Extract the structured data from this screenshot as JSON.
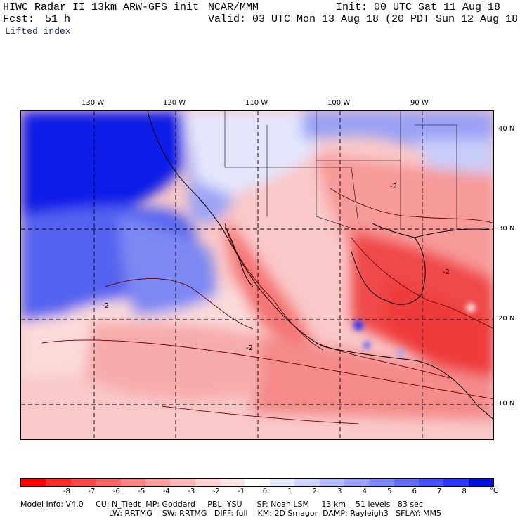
{
  "header": {
    "line1_left": "HIWC Radar II 13km ARW-GFS init",
    "line1_mid": "NCAR/MMM",
    "line1_right": "Init: 00 UTC Sat 11 Aug 18",
    "fcst_label": "Fcst:",
    "fcst_value": "51 h",
    "valid": "Valid: 03 UTC Mon 13 Aug 18 (20 PDT Sun 12 Aug 18)",
    "field": "Lifted index"
  },
  "map": {
    "lon_labels": [
      "130 W",
      "120 W",
      "110 W",
      "100 W",
      "90 W"
    ],
    "lat_labels": [
      "40 N",
      "30 N",
      "20 N",
      "10 N"
    ],
    "contour_labels": [
      "-2",
      "-2",
      "-2",
      "-2"
    ]
  },
  "colorbar": {
    "colors": [
      "#ff0000",
      "#ff2a2a",
      "#ff4848",
      "#ff6464",
      "#ff8080",
      "#ff9c9c",
      "#ffb6b6",
      "#ffd0d0",
      "#ffe6e6",
      "#ffffff",
      "#e6e8ff",
      "#cfd3ff",
      "#b5bbff",
      "#9aa2ff",
      "#7f88ff",
      "#636dff",
      "#4752ff",
      "#2a35ff",
      "#0010e0"
    ],
    "labels": [
      "-8",
      "-7",
      "-6",
      "-5",
      "-4",
      "-3",
      "-2",
      "-1",
      "0",
      "1",
      "2",
      "3",
      "4",
      "5",
      "6",
      "7",
      "8"
    ],
    "unit": "°C"
  },
  "model_info": {
    "line1": "Model Info: V4.0     CU: N_Tiedt  MP: Goddard     PBL: YSU      SF: Noah LSM     13 km    51 levels   83 sec",
    "line2": "LW: RRTMG    SW: RRTMG   DIFF: full    KM: 2D Smagor  DAMP: Rayleigh3   SFLAY: MM5"
  }
}
